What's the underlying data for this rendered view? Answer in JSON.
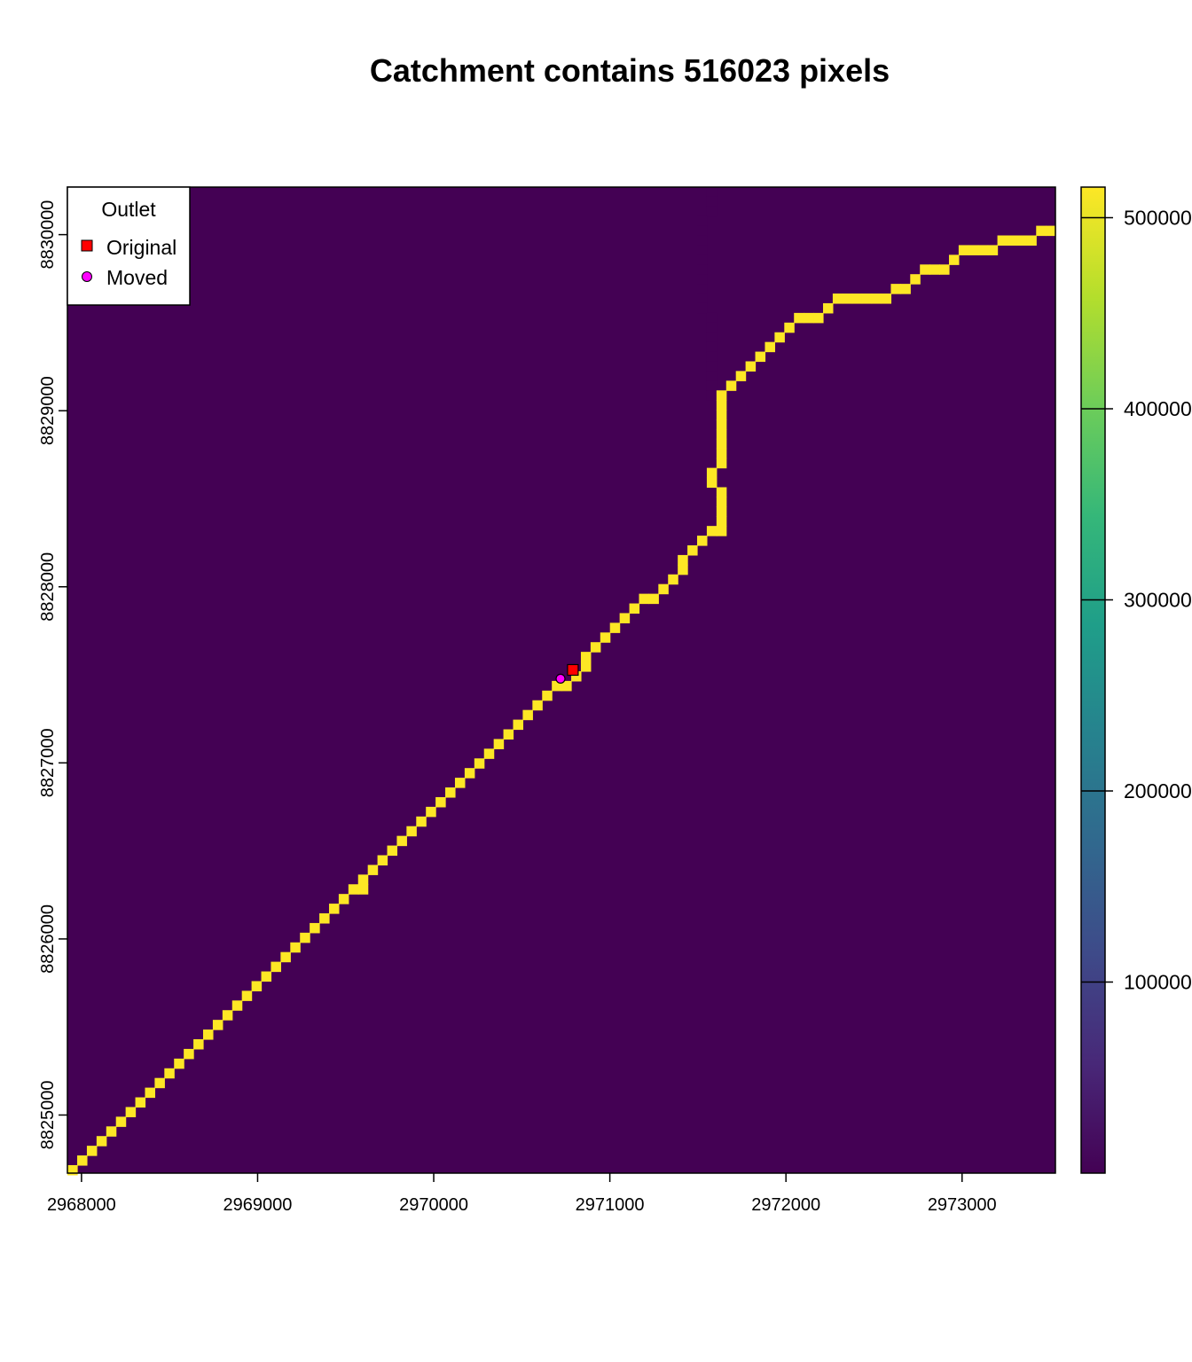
{
  "chart_data": {
    "type": "heatmap",
    "title": "Catchment contains 516023 pixels",
    "xlabel": "",
    "ylabel": "",
    "xlim": [
      2967920,
      2973530
    ],
    "ylim": [
      8824670,
      8830270
    ],
    "cell_size": 55,
    "x_ticks": [
      2968000,
      2969000,
      2970000,
      2971000,
      2972000,
      2973000
    ],
    "y_ticks": [
      8825000,
      8826000,
      8827000,
      8828000,
      8829000,
      8830000
    ],
    "background_value": 0,
    "colorbar": {
      "min": 0,
      "max": 516023,
      "ticks": [
        100000,
        200000,
        300000,
        400000,
        500000
      ],
      "tick_labels": [
        "100000",
        "200000",
        "300000",
        "400000",
        "500000"
      ],
      "palette": [
        "#440154",
        "#482878",
        "#3E4A89",
        "#31688E",
        "#26828E",
        "#1F9E89",
        "#35B779",
        "#6DCD59",
        "#B4DE2C",
        "#FDE725"
      ]
    },
    "stream_path": [
      [
        2967948,
        8824688
      ],
      [
        2968003,
        8824743
      ],
      [
        2968058,
        8824798
      ],
      [
        2968113,
        8824853
      ],
      [
        2968168,
        8824908
      ],
      [
        2968223,
        8824963
      ],
      [
        2968278,
        8825018
      ],
      [
        2968333,
        8825073
      ],
      [
        2968388,
        8825128
      ],
      [
        2968443,
        8825183
      ],
      [
        2968498,
        8825238
      ],
      [
        2968553,
        8825293
      ],
      [
        2968608,
        8825348
      ],
      [
        2968663,
        8825403
      ],
      [
        2968718,
        8825458
      ],
      [
        2968773,
        8825513
      ],
      [
        2968828,
        8825568
      ],
      [
        2968883,
        8825623
      ],
      [
        2968938,
        8825678
      ],
      [
        2968993,
        8825733
      ],
      [
        2969048,
        8825788
      ],
      [
        2969103,
        8825843
      ],
      [
        2969158,
        8825898
      ],
      [
        2969213,
        8825953
      ],
      [
        2969268,
        8826008
      ],
      [
        2969323,
        8826063
      ],
      [
        2969378,
        8826118
      ],
      [
        2969433,
        8826173
      ],
      [
        2969488,
        8826228
      ],
      [
        2969543,
        8826283
      ],
      [
        2969598,
        8826283
      ],
      [
        2969598,
        8826338
      ],
      [
        2969653,
        8826393
      ],
      [
        2969708,
        8826448
      ],
      [
        2969763,
        8826503
      ],
      [
        2969818,
        8826558
      ],
      [
        2969873,
        8826613
      ],
      [
        2969928,
        8826668
      ],
      [
        2969983,
        8826723
      ],
      [
        2970038,
        8826778
      ],
      [
        2970093,
        8826833
      ],
      [
        2970148,
        8826888
      ],
      [
        2970203,
        8826943
      ],
      [
        2970258,
        8826998
      ],
      [
        2970313,
        8827053
      ],
      [
        2970368,
        8827108
      ],
      [
        2970423,
        8827163
      ],
      [
        2970478,
        8827218
      ],
      [
        2970533,
        8827273
      ],
      [
        2970588,
        8827328
      ],
      [
        2970643,
        8827383
      ],
      [
        2970698,
        8827438
      ],
      [
        2970753,
        8827438
      ],
      [
        2970808,
        8827493
      ],
      [
        2970863,
        8827548
      ],
      [
        2970863,
        8827603
      ],
      [
        2970918,
        8827658
      ],
      [
        2970973,
        8827713
      ],
      [
        2971028,
        8827768
      ],
      [
        2971083,
        8827823
      ],
      [
        2971138,
        8827878
      ],
      [
        2971193,
        8827933
      ],
      [
        2971248,
        8827933
      ],
      [
        2971303,
        8827988
      ],
      [
        2971358,
        8828043
      ],
      [
        2971413,
        8828098
      ],
      [
        2971413,
        8828153
      ],
      [
        2971468,
        8828208
      ],
      [
        2971523,
        8828263
      ],
      [
        2971578,
        8828318
      ],
      [
        2971633,
        8828318
      ],
      [
        2971633,
        8828373
      ],
      [
        2971633,
        8828428
      ],
      [
        2971633,
        8828483
      ],
      [
        2971633,
        8828538
      ],
      [
        2971578,
        8828648
      ],
      [
        2971578,
        8828593
      ],
      [
        2971633,
        8828703
      ],
      [
        2971633,
        8828758
      ],
      [
        2971633,
        8828813
      ],
      [
        2971633,
        8828868
      ],
      [
        2971633,
        8828923
      ],
      [
        2971633,
        8828978
      ],
      [
        2971633,
        8829033
      ],
      [
        2971633,
        8829088
      ],
      [
        2971688,
        8829143
      ],
      [
        2971743,
        8829198
      ],
      [
        2971798,
        8829253
      ],
      [
        2971853,
        8829308
      ],
      [
        2971908,
        8829363
      ],
      [
        2971963,
        8829418
      ],
      [
        2972018,
        8829473
      ],
      [
        2972073,
        8829528
      ],
      [
        2972128,
        8829528
      ],
      [
        2972183,
        8829528
      ],
      [
        2972238,
        8829583
      ],
      [
        2972293,
        8829638
      ],
      [
        2972348,
        8829638
      ],
      [
        2972403,
        8829638
      ],
      [
        2972458,
        8829638
      ],
      [
        2972513,
        8829638
      ],
      [
        2972568,
        8829638
      ],
      [
        2972623,
        8829693
      ],
      [
        2972678,
        8829693
      ],
      [
        2972733,
        8829748
      ],
      [
        2972788,
        8829803
      ],
      [
        2972843,
        8829803
      ],
      [
        2972898,
        8829803
      ],
      [
        2972953,
        8829858
      ],
      [
        2973008,
        8829913
      ],
      [
        2973063,
        8829913
      ],
      [
        2973118,
        8829913
      ],
      [
        2973173,
        8829913
      ],
      [
        2973228,
        8829968
      ],
      [
        2973283,
        8829968
      ],
      [
        2973338,
        8829968
      ],
      [
        2973393,
        8829968
      ],
      [
        2973448,
        8830023
      ],
      [
        2973503,
        8830023
      ]
    ],
    "stream_value": 510000,
    "tributary": {
      "value": 15000,
      "cells": [
        [
          2971578,
          8830243
        ],
        [
          2971578,
          8830188
        ],
        [
          2971578,
          8830133
        ],
        [
          2971523,
          8830078
        ],
        [
          2971523,
          8830023
        ],
        [
          2971523,
          8829968
        ],
        [
          2971523,
          8829913
        ],
        [
          2971523,
          8829858
        ],
        [
          2971523,
          8829803
        ],
        [
          2971523,
          8829748
        ],
        [
          2971523,
          8829693
        ],
        [
          2971523,
          8829638
        ],
        [
          2971523,
          8829583
        ],
        [
          2971578,
          8829528
        ],
        [
          2971578,
          8829473
        ],
        [
          2971578,
          8829418
        ],
        [
          2971578,
          8829363
        ],
        [
          2971578,
          8829308
        ],
        [
          2971578,
          8829253
        ],
        [
          2971578,
          8829198
        ],
        [
          2971578,
          8829143
        ],
        [
          2971578,
          8829088
        ]
      ]
    },
    "points": [
      {
        "name": "Original",
        "x": 2970790,
        "y": 8827528,
        "marker": "square",
        "fill": "#FF0000"
      },
      {
        "name": "Moved",
        "x": 2970720,
        "y": 8827478,
        "marker": "circle",
        "fill": "#FF00FF"
      }
    ],
    "legend": {
      "title": "Outlet",
      "position": "top-left",
      "entries": [
        "Original",
        "Moved"
      ]
    }
  }
}
